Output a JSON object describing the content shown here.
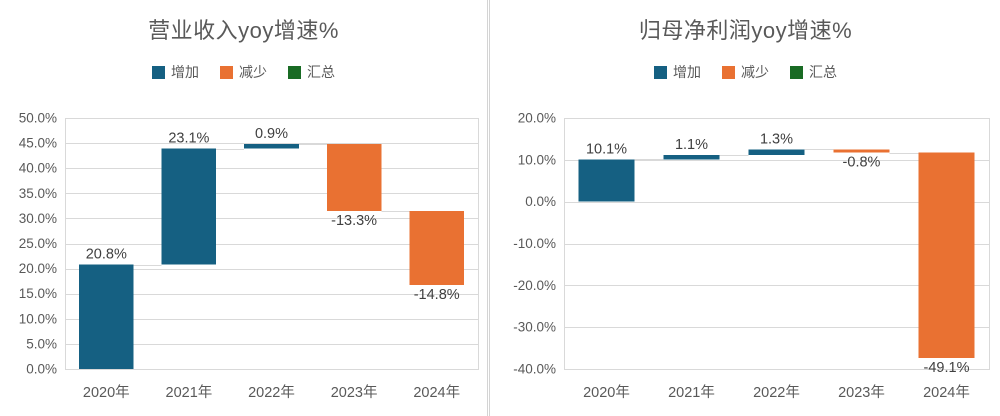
{
  "colors": {
    "increase": "#156082",
    "decrease": "#E97132",
    "total": "#196B24",
    "gridline": "#D9D9D9",
    "plot_border": "#D9D9D9",
    "connector": "#D9D9D9",
    "axis_text": "#595959",
    "title_text": "#595959",
    "data_label_text": "#404040",
    "panel_divider": "#D4D4D4",
    "background": "#FFFFFF"
  },
  "chart_data": [
    {
      "type": "bar",
      "subtype": "waterfall",
      "title": "营业收入yoy增速%",
      "legend_position": "top",
      "grid": true,
      "legend": [
        {
          "key": "increase",
          "label": "增加",
          "color": "#156082"
        },
        {
          "key": "decrease",
          "label": "减少",
          "color": "#E97132"
        },
        {
          "key": "total",
          "label": "汇总",
          "color": "#196B24"
        }
      ],
      "categories": [
        "2020年",
        "2021年",
        "2022年",
        "2023年",
        "2024年"
      ],
      "values": [
        20.8,
        23.1,
        0.9,
        -13.3,
        -14.8
      ],
      "data_labels": [
        "20.8%",
        "23.1%",
        "0.9%",
        "-13.3%",
        "-14.8%"
      ],
      "cumulative": [
        20.8,
        43.9,
        44.8,
        31.5,
        16.7
      ],
      "ylim": [
        0,
        50
      ],
      "ytick_values": [
        0,
        5,
        10,
        15,
        20,
        25,
        30,
        35,
        40,
        45,
        50
      ],
      "ytick_labels": [
        "0.0%",
        "5.0%",
        "10.0%",
        "15.0%",
        "20.0%",
        "25.0%",
        "30.0%",
        "35.0%",
        "40.0%",
        "45.0%",
        "50.0%"
      ],
      "xlabel": "",
      "ylabel": ""
    },
    {
      "type": "bar",
      "subtype": "waterfall",
      "title": "归母净利润yoy增速%",
      "legend_position": "top",
      "grid": true,
      "legend": [
        {
          "key": "increase",
          "label": "增加",
          "color": "#156082"
        },
        {
          "key": "decrease",
          "label": "减少",
          "color": "#E97132"
        },
        {
          "key": "total",
          "label": "汇总",
          "color": "#196B24"
        }
      ],
      "categories": [
        "2020年",
        "2021年",
        "2022年",
        "2023年",
        "2024年"
      ],
      "values": [
        10.1,
        1.1,
        1.3,
        -0.8,
        -49.1
      ],
      "data_labels": [
        "10.1%",
        "1.1%",
        "1.3%",
        "-0.8%",
        "-49.1%"
      ],
      "cumulative": [
        10.1,
        11.2,
        12.5,
        11.7,
        -37.4
      ],
      "ylim": [
        -40,
        20
      ],
      "ytick_values": [
        -40,
        -30,
        -20,
        -10,
        0,
        10,
        20
      ],
      "ytick_labels": [
        "-40.0%",
        "-30.0%",
        "-20.0%",
        "-10.0%",
        "0.0%",
        "10.0%",
        "20.0%"
      ],
      "xlabel": "",
      "ylabel": ""
    }
  ]
}
